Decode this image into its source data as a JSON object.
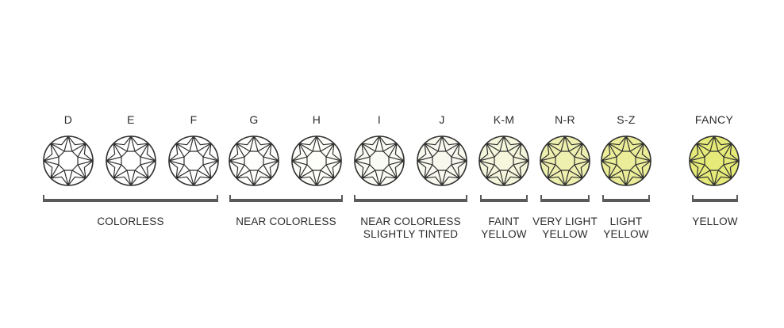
{
  "grades": [
    {
      "label": "D",
      "fill": "#ffffff"
    },
    {
      "label": "E",
      "fill": "#ffffff"
    },
    {
      "label": "F",
      "fill": "#ffffff"
    },
    {
      "label": "G",
      "fill": "#fefefc"
    },
    {
      "label": "H",
      "fill": "#fefefa"
    },
    {
      "label": "I",
      "fill": "#fbfbf5"
    },
    {
      "label": "J",
      "fill": "#f8f8ee"
    },
    {
      "label": "K-M",
      "fill": "#f5f6dc"
    },
    {
      "label": "N-R",
      "fill": "#eef0b0"
    },
    {
      "label": "S-Z",
      "fill": "#ebed98"
    },
    {
      "label": "FANCY",
      "fill": "#e6ea78"
    }
  ],
  "groups": [
    {
      "lines": [
        "COLORLESS"
      ]
    },
    {
      "lines": [
        "NEAR COLORLESS"
      ]
    },
    {
      "lines": [
        "NEAR COLORLESS",
        "SLIGHTLY TINTED"
      ]
    },
    {
      "lines": [
        "FAINT",
        "YELLOW"
      ]
    },
    {
      "lines": [
        "VERY LIGHT",
        "YELLOW"
      ]
    },
    {
      "lines": [
        "LIGHT",
        "YELLOW"
      ]
    },
    {
      "lines": [
        "YELLOW"
      ]
    }
  ],
  "colors": {
    "outline": "#2f2f2f",
    "bracket": "#5a5a5a"
  }
}
